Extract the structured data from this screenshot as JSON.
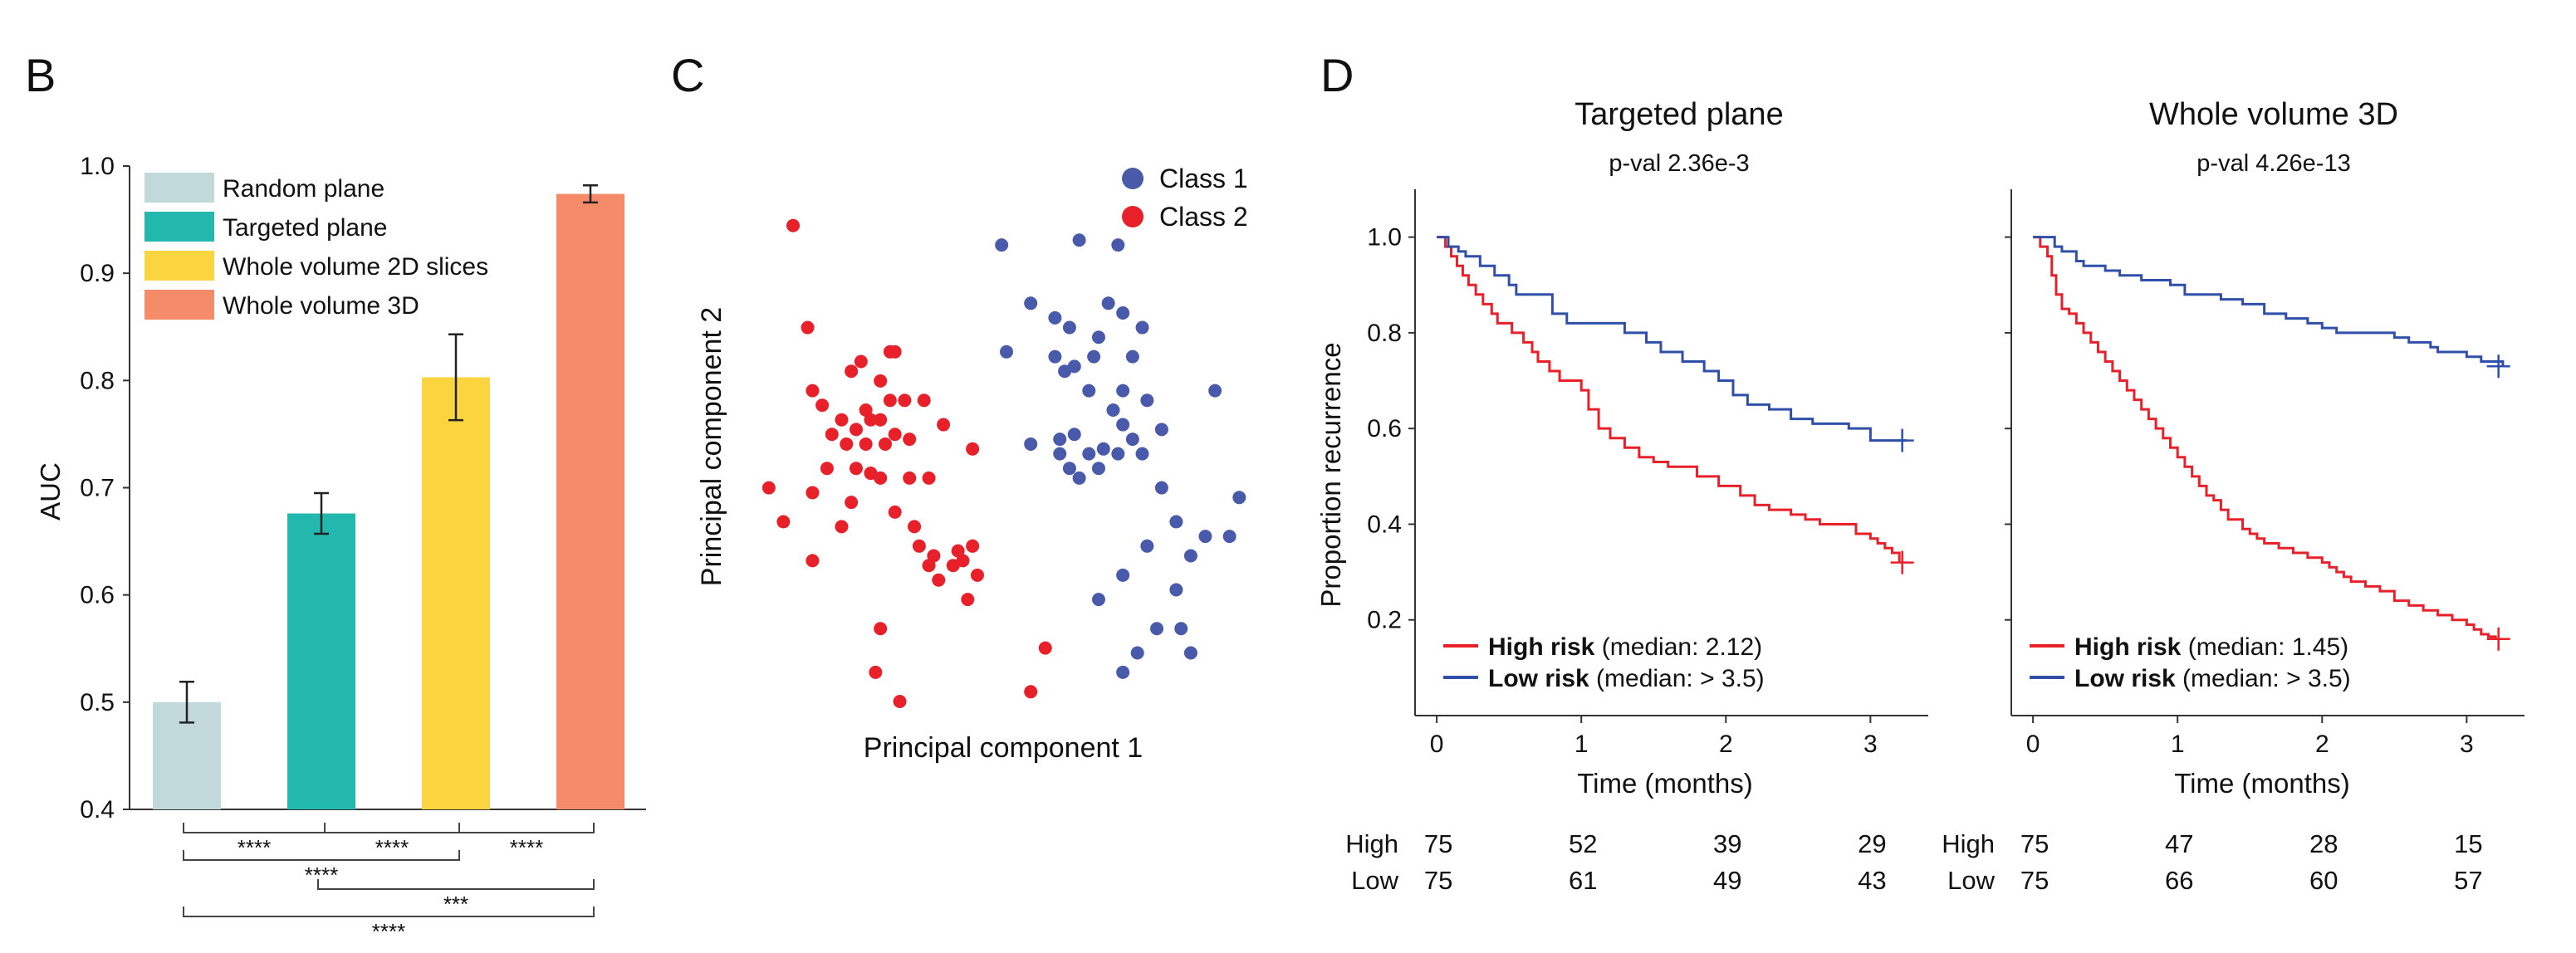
{
  "panel_letters": {
    "b": "B",
    "c": "C",
    "d": "D"
  },
  "chart_data": [
    {
      "id": "B",
      "type": "bar",
      "ylabel": "AUC",
      "xlabel": "",
      "ylim": [
        0.4,
        1.0
      ],
      "yticks": [
        0.4,
        0.5,
        0.6,
        0.7,
        0.8,
        0.9,
        1.0
      ],
      "ytick_labels": [
        "0.4",
        "0.5",
        "0.6",
        "0.7",
        "0.8",
        "0.9",
        "1.0"
      ],
      "categories": [
        "Random plane",
        "Targeted plane",
        "Whole volume 2D slices",
        "Whole volume 3D"
      ],
      "values": [
        0.5,
        0.676,
        0.803,
        0.974
      ],
      "errors": [
        0.019,
        0.019,
        0.04,
        0.008
      ],
      "colors": [
        "#c2d9dc",
        "#22b8ae",
        "#fbd540",
        "#f68b6a"
      ],
      "legend": [
        "Random plane",
        "Targeted plane",
        "Whole volume 2D slices",
        "Whole volume 3D"
      ],
      "legend_position": "top-left",
      "significance": [
        {
          "from": 0,
          "to": 1,
          "label": "****"
        },
        {
          "from": 1,
          "to": 2,
          "label": "****"
        },
        {
          "from": 2,
          "to": 3,
          "label": "****"
        },
        {
          "from": 0,
          "to": 2,
          "label": "****"
        },
        {
          "from": 1,
          "to": 3,
          "label": "***"
        },
        {
          "from": 0,
          "to": 3,
          "label": "****"
        }
      ]
    },
    {
      "id": "C",
      "type": "scatter",
      "xlabel": "Principal component 1",
      "ylabel": "Principal component 2",
      "xlim": [
        0,
        1
      ],
      "ylim": [
        0,
        1
      ],
      "legend_position": "top-right",
      "series": [
        {
          "name": "Class 1",
          "color": "#4a5aaa",
          "points": [
            [
              0.49,
              0.94
            ],
            [
              0.65,
              0.95
            ],
            [
              0.73,
              0.94
            ],
            [
              0.55,
              0.82
            ],
            [
              0.6,
              0.79
            ],
            [
              0.71,
              0.82
            ],
            [
              0.63,
              0.77
            ],
            [
              0.69,
              0.75
            ],
            [
              0.74,
              0.8
            ],
            [
              0.78,
              0.77
            ],
            [
              0.5,
              0.72
            ],
            [
              0.6,
              0.71
            ],
            [
              0.64,
              0.69
            ],
            [
              0.68,
              0.71
            ],
            [
              0.76,
              0.71
            ],
            [
              0.62,
              0.68
            ],
            [
              0.74,
              0.64
            ],
            [
              0.67,
              0.64
            ],
            [
              0.72,
              0.6
            ],
            [
              0.79,
              0.62
            ],
            [
              0.93,
              0.64
            ],
            [
              0.74,
              0.57
            ],
            [
              0.64,
              0.55
            ],
            [
              0.76,
              0.54
            ],
            [
              0.82,
              0.56
            ],
            [
              0.55,
              0.53
            ],
            [
              0.61,
              0.54
            ],
            [
              0.67,
              0.51
            ],
            [
              0.7,
              0.52
            ],
            [
              0.73,
              0.51
            ],
            [
              0.69,
              0.48
            ],
            [
              0.78,
              0.51
            ],
            [
              0.61,
              0.51
            ],
            [
              0.63,
              0.48
            ],
            [
              0.65,
              0.46
            ],
            [
              0.82,
              0.44
            ],
            [
              0.98,
              0.42
            ],
            [
              0.85,
              0.37
            ],
            [
              0.79,
              0.32
            ],
            [
              0.91,
              0.34
            ],
            [
              0.88,
              0.3
            ],
            [
              0.96,
              0.34
            ],
            [
              0.74,
              0.26
            ],
            [
              0.85,
              0.23
            ],
            [
              0.69,
              0.21
            ],
            [
              0.81,
              0.15
            ],
            [
              0.86,
              0.15
            ],
            [
              0.77,
              0.1
            ],
            [
              0.88,
              0.1
            ],
            [
              0.74,
              0.06
            ]
          ]
        },
        {
          "name": "Class 2",
          "color": "#e8202a",
          "points": [
            [
              0.06,
              0.98
            ],
            [
              0.09,
              0.77
            ],
            [
              0.26,
              0.72
            ],
            [
              0.2,
              0.7
            ],
            [
              0.27,
              0.72
            ],
            [
              0.1,
              0.64
            ],
            [
              0.12,
              0.61
            ],
            [
              0.18,
              0.68
            ],
            [
              0.26,
              0.62
            ],
            [
              0.24,
              0.66
            ],
            [
              0.33,
              0.62
            ],
            [
              0.29,
              0.62
            ],
            [
              0.16,
              0.58
            ],
            [
              0.21,
              0.6
            ],
            [
              0.22,
              0.58
            ],
            [
              0.24,
              0.58
            ],
            [
              0.14,
              0.55
            ],
            [
              0.19,
              0.56
            ],
            [
              0.27,
              0.55
            ],
            [
              0.17,
              0.53
            ],
            [
              0.21,
              0.53
            ],
            [
              0.25,
              0.53
            ],
            [
              0.3,
              0.54
            ],
            [
              0.37,
              0.57
            ],
            [
              0.43,
              0.52
            ],
            [
              0.13,
              0.48
            ],
            [
              0.19,
              0.48
            ],
            [
              0.22,
              0.47
            ],
            [
              0.24,
              0.46
            ],
            [
              0.3,
              0.46
            ],
            [
              0.34,
              0.46
            ],
            [
              0.01,
              0.44
            ],
            [
              0.1,
              0.43
            ],
            [
              0.18,
              0.41
            ],
            [
              0.27,
              0.39
            ],
            [
              0.04,
              0.37
            ],
            [
              0.16,
              0.36
            ],
            [
              0.31,
              0.36
            ],
            [
              0.32,
              0.32
            ],
            [
              0.35,
              0.3
            ],
            [
              0.4,
              0.31
            ],
            [
              0.43,
              0.32
            ],
            [
              0.1,
              0.29
            ],
            [
              0.34,
              0.28
            ],
            [
              0.39,
              0.28
            ],
            [
              0.41,
              0.29
            ],
            [
              0.36,
              0.25
            ],
            [
              0.44,
              0.26
            ],
            [
              0.42,
              0.21
            ],
            [
              0.24,
              0.15
            ],
            [
              0.58,
              0.11
            ],
            [
              0.23,
              0.06
            ],
            [
              0.55,
              0.02
            ],
            [
              0.28,
              0.0
            ]
          ]
        }
      ]
    },
    {
      "id": "D-left",
      "type": "line",
      "title": "Targeted plane",
      "subtitle": "p-val 2.36e-3",
      "xlabel": "Time (months)",
      "ylabel": "Proportion recurrence",
      "xlim": [
        -0.15,
        3.4
      ],
      "ylim": [
        0.0,
        1.1
      ],
      "xticks": [
        0,
        1,
        2,
        3
      ],
      "xtick_labels": [
        "0",
        "1",
        "2",
        "3"
      ],
      "yticks": [
        0.2,
        0.4,
        0.6,
        0.8,
        1.0
      ],
      "ytick_labels": [
        "0.2",
        "0.4",
        "0.6",
        "0.8",
        "1.0"
      ],
      "legend_position": "bottom-left",
      "series": [
        {
          "name": "High risk",
          "legend_bold": "High risk",
          "legend_rest": " (median: 2.12)",
          "color": "#e8202a",
          "censor": [
            3.22,
            0.32
          ],
          "x": [
            0,
            0.06,
            0.1,
            0.14,
            0.18,
            0.22,
            0.27,
            0.32,
            0.38,
            0.42,
            0.52,
            0.6,
            0.66,
            0.7,
            0.78,
            0.85,
            1.0,
            1.05,
            1.12,
            1.2,
            1.3,
            1.4,
            1.5,
            1.6,
            1.8,
            1.95,
            2.1,
            2.2,
            2.3,
            2.45,
            2.55,
            2.65,
            2.8,
            2.9,
            3.0,
            3.05,
            3.1,
            3.15,
            3.2
          ],
          "y": [
            1.0,
            0.98,
            0.96,
            0.94,
            0.92,
            0.9,
            0.88,
            0.86,
            0.84,
            0.82,
            0.8,
            0.78,
            0.76,
            0.74,
            0.72,
            0.7,
            0.68,
            0.64,
            0.6,
            0.58,
            0.56,
            0.54,
            0.53,
            0.52,
            0.5,
            0.48,
            0.46,
            0.44,
            0.43,
            0.42,
            0.41,
            0.4,
            0.4,
            0.38,
            0.37,
            0.36,
            0.35,
            0.34,
            0.32
          ]
        },
        {
          "name": "Low risk",
          "legend_bold": "Low risk",
          "legend_rest": " (median: > 3.5)",
          "color": "#2f4fa8",
          "censor": [
            3.22,
            0.575
          ],
          "x": [
            0,
            0.08,
            0.15,
            0.2,
            0.3,
            0.4,
            0.5,
            0.55,
            0.8,
            0.9,
            1.3,
            1.45,
            1.55,
            1.7,
            1.85,
            1.95,
            2.05,
            2.15,
            2.3,
            2.45,
            2.6,
            2.85,
            3.0,
            3.25
          ],
          "y": [
            1.0,
            0.98,
            0.97,
            0.96,
            0.94,
            0.92,
            0.9,
            0.88,
            0.84,
            0.82,
            0.8,
            0.78,
            0.76,
            0.74,
            0.72,
            0.7,
            0.67,
            0.65,
            0.64,
            0.62,
            0.61,
            0.6,
            0.575,
            0.575
          ]
        }
      ],
      "risk_table": {
        "rows": [
          {
            "label": "High",
            "values": [
              "75",
              "52",
              "39",
              "29"
            ]
          },
          {
            "label": "Low",
            "values": [
              "75",
              "61",
              "49",
              "43"
            ]
          }
        ]
      }
    },
    {
      "id": "D-right",
      "type": "line",
      "title": "Whole volume 3D",
      "subtitle": "p-val 4.26e-13",
      "xlabel": "Time (months)",
      "ylabel": "",
      "xlim": [
        -0.15,
        3.4
      ],
      "ylim": [
        0.0,
        1.1
      ],
      "xticks": [
        0,
        1,
        2,
        3
      ],
      "xtick_labels": [
        "0",
        "1",
        "2",
        "3"
      ],
      "yticks": [
        0.2,
        0.4,
        0.6,
        0.8,
        1.0
      ],
      "ytick_labels": [],
      "legend_position": "bottom-left",
      "series": [
        {
          "name": "High risk",
          "legend_bold": "High risk",
          "legend_rest": " (median: 1.45)",
          "color": "#e8202a",
          "censor": [
            3.22,
            0.16
          ],
          "x": [
            0,
            0.05,
            0.1,
            0.13,
            0.16,
            0.2,
            0.25,
            0.3,
            0.35,
            0.4,
            0.45,
            0.5,
            0.55,
            0.6,
            0.65,
            0.7,
            0.75,
            0.8,
            0.85,
            0.9,
            0.95,
            1.0,
            1.05,
            1.1,
            1.15,
            1.2,
            1.25,
            1.3,
            1.35,
            1.45,
            1.5,
            1.55,
            1.6,
            1.7,
            1.8,
            1.9,
            2.0,
            2.05,
            2.1,
            2.15,
            2.2,
            2.3,
            2.4,
            2.5,
            2.6,
            2.7,
            2.8,
            2.9,
            3.0,
            3.05,
            3.1,
            3.15,
            3.2
          ],
          "y": [
            1.0,
            0.98,
            0.96,
            0.92,
            0.88,
            0.85,
            0.84,
            0.82,
            0.8,
            0.78,
            0.76,
            0.74,
            0.72,
            0.7,
            0.68,
            0.66,
            0.64,
            0.62,
            0.6,
            0.58,
            0.56,
            0.54,
            0.52,
            0.5,
            0.48,
            0.46,
            0.45,
            0.43,
            0.41,
            0.39,
            0.38,
            0.37,
            0.36,
            0.35,
            0.34,
            0.33,
            0.32,
            0.31,
            0.3,
            0.29,
            0.28,
            0.27,
            0.26,
            0.24,
            0.23,
            0.22,
            0.21,
            0.2,
            0.19,
            0.18,
            0.17,
            0.165,
            0.16
          ]
        },
        {
          "name": "Low risk",
          "legend_bold": "Low risk",
          "legend_rest": " (median: > 3.5)",
          "color": "#2f4fa8",
          "censor": [
            3.22,
            0.73
          ],
          "x": [
            0,
            0.15,
            0.2,
            0.3,
            0.35,
            0.5,
            0.6,
            0.75,
            0.95,
            1.05,
            1.3,
            1.45,
            1.6,
            1.75,
            1.9,
            2.0,
            2.1,
            2.3,
            2.5,
            2.6,
            2.75,
            2.8,
            3.0,
            3.1,
            3.25
          ],
          "y": [
            1.0,
            0.98,
            0.97,
            0.95,
            0.94,
            0.93,
            0.92,
            0.91,
            0.9,
            0.88,
            0.87,
            0.86,
            0.84,
            0.83,
            0.82,
            0.81,
            0.8,
            0.8,
            0.79,
            0.78,
            0.77,
            0.76,
            0.75,
            0.74,
            0.73
          ]
        }
      ],
      "risk_table": {
        "rows": [
          {
            "label": "High",
            "values": [
              "75",
              "47",
              "28",
              "15"
            ]
          },
          {
            "label": "Low",
            "values": [
              "75",
              "66",
              "60",
              "57"
            ]
          }
        ]
      }
    }
  ]
}
